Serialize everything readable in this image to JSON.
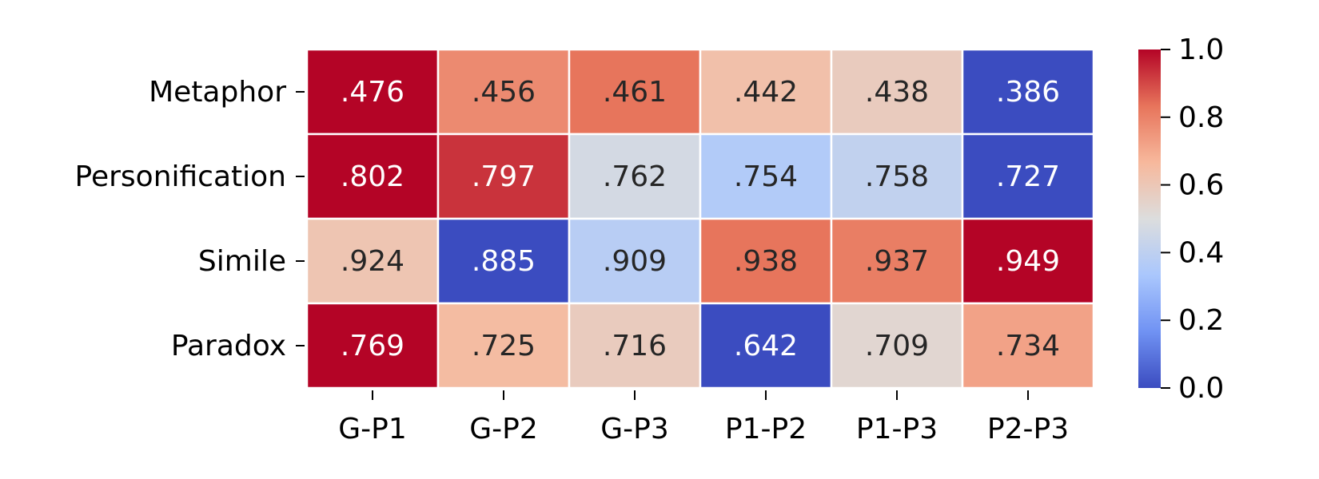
{
  "chart_data": {
    "type": "heatmap",
    "title": "",
    "xlabel": "",
    "ylabel": "",
    "columns": [
      "G-P1",
      "G-P2",
      "G-P3",
      "P1-P2",
      "P1-P3",
      "P2-P3"
    ],
    "rows": [
      "Metaphor",
      "Personification",
      "Simile",
      "Paradox"
    ],
    "annotations": [
      [
        ".476",
        ".456",
        ".461",
        ".442",
        ".438",
        ".386"
      ],
      [
        ".802",
        ".797",
        ".762",
        ".754",
        ".758",
        ".727"
      ],
      [
        ".924",
        ".885",
        ".909",
        ".938",
        ".937",
        ".949"
      ],
      [
        ".769",
        ".725",
        ".716",
        ".642",
        ".709",
        ".734"
      ]
    ],
    "color_values": [
      [
        1.0,
        0.78,
        0.83,
        0.63,
        0.58,
        0.0
      ],
      [
        1.0,
        0.93,
        0.47,
        0.36,
        0.41,
        0.0
      ],
      [
        0.61,
        0.0,
        0.38,
        0.83,
        0.81,
        1.0
      ],
      [
        1.0,
        0.65,
        0.58,
        0.0,
        0.53,
        0.72
      ]
    ],
    "colorbar": {
      "colormap": "coolwarm",
      "vmin": 0.0,
      "vmax": 1.0,
      "ticks": [
        "0.0",
        "0.2",
        "0.4",
        "0.6",
        "0.8",
        "1.0"
      ]
    },
    "cmap_colors": [
      "#3b4cc0",
      "#7092f3",
      "#aac7fd",
      "#dcdddd",
      "#f7b89c",
      "#e7745b",
      "#b40426"
    ],
    "text_colors": {
      "light": "#ffffff",
      "dark": "#262626"
    },
    "grid_line_color": "#ffffff",
    "label_color": "#000000"
  }
}
